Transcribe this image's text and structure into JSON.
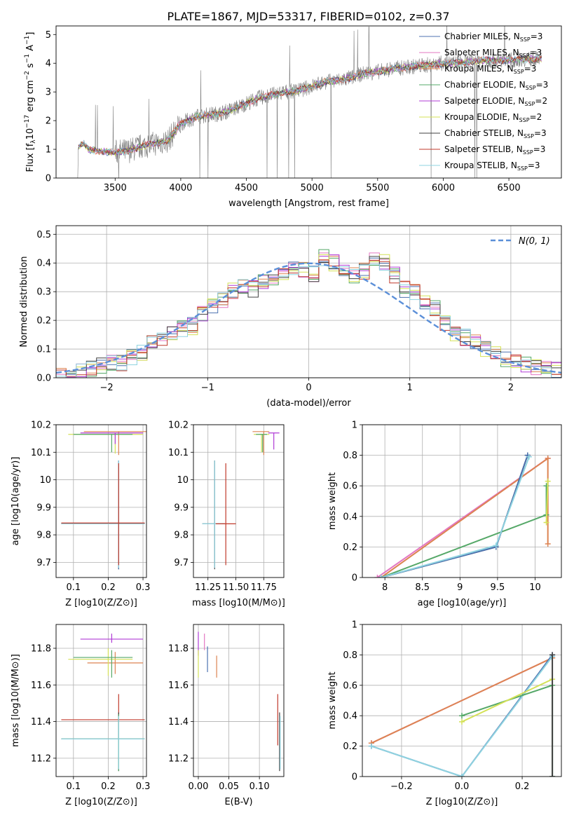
{
  "figure": {
    "title": "PLATE=1867, MJD=53317, FIBERID=0102, z=0.37",
    "colors": {
      "chabrier_miles": "#4c72b0",
      "salpeter_miles": "#e377c2",
      "kroupa_miles": "#dd8452",
      "chabrier_elodie": "#55a868",
      "salpeter_elodie": "#b03bd6",
      "kroupa_elodie": "#d4e157",
      "chabrier_stelib": "#404040",
      "salpeter_stelib": "#c0392b",
      "kroupa_stelib": "#8fd3e0",
      "data": "#808080",
      "normal": "#5b8fd8"
    }
  },
  "chart_data": [
    {
      "id": "spectrum",
      "type": "line",
      "xlabel": "wavelength [Angstrom, rest frame]",
      "ylabel": "Flux [f",
      "ylabel_parts": [
        "Flux [f",
        "λ",
        "10",
        "−17",
        " erg cm",
        "−2",
        " s",
        "−1",
        " A",
        "−1",
        "]"
      ],
      "xlim": [
        3050,
        6900
      ],
      "ylim": [
        0,
        5.3
      ],
      "xticks": [
        3500,
        4000,
        4500,
        5000,
        5500,
        6000,
        6500
      ],
      "yticks": [
        0,
        1,
        2,
        3,
        4,
        5
      ],
      "grid": false,
      "legend_position": "top-right",
      "series": [
        {
          "name": "Chabrier MILES, N",
          "sub": "SSP",
          "suffix": "=3",
          "color": "#4c72b0"
        },
        {
          "name": "Salpeter MILES, N",
          "sub": "SSP",
          "suffix": "=3",
          "color": "#e377c2"
        },
        {
          "name": "Kroupa MILES, N",
          "sub": "SSP",
          "suffix": "=3",
          "color": "#dd8452"
        },
        {
          "name": "Chabrier ELODIE, N",
          "sub": "SSP",
          "suffix": "=3",
          "color": "#55a868"
        },
        {
          "name": "Salpeter ELODIE, N",
          "sub": "SSP",
          "suffix": "=2",
          "color": "#b03bd6"
        },
        {
          "name": "Kroupa ELODIE, N",
          "sub": "SSP",
          "suffix": "=2",
          "color": "#d4e157"
        },
        {
          "name": "Chabrier STELIB, N",
          "sub": "SSP",
          "suffix": "=3",
          "color": "#404040"
        },
        {
          "name": "Salpeter STELIB, N",
          "sub": "SSP",
          "suffix": "=3",
          "color": "#c0392b"
        },
        {
          "name": "Kroupa STELIB, N",
          "sub": "SSP",
          "suffix": "=3",
          "color": "#8fd3e0"
        }
      ],
      "continuum": {
        "x": [
          3220,
          3260,
          3300,
          3400,
          3500,
          3600,
          3700,
          3800,
          3900,
          4000,
          4100,
          4200,
          4300,
          4400,
          4500,
          4600,
          4700,
          4800,
          4900,
          5000,
          5100,
          5200,
          5300,
          5400,
          5500,
          5600,
          5700,
          5800,
          5900,
          6000,
          6100,
          6200,
          6300,
          6400,
          6500,
          6600,
          6750
        ],
        "y": [
          1.1,
          1.2,
          0.98,
          0.92,
          0.9,
          0.95,
          1.1,
          1.2,
          1.3,
          1.9,
          2.1,
          2.2,
          2.25,
          2.4,
          2.6,
          2.8,
          2.9,
          3.0,
          3.05,
          3.2,
          3.35,
          3.4,
          3.5,
          3.65,
          3.7,
          3.8,
          3.85,
          3.9,
          3.95,
          4.0,
          4.0,
          4.05,
          4.1,
          4.1,
          4.1,
          4.15,
          4.15
        ]
      }
    },
    {
      "id": "residuals",
      "type": "line",
      "xlabel": "(data-model)/error",
      "ylabel": "Normed distribution",
      "xlim": [
        -2.5,
        2.5
      ],
      "ylim": [
        0,
        0.53
      ],
      "xticks": [
        -2,
        -1,
        0,
        1,
        2
      ],
      "xticklabels": [
        "−2",
        "−1",
        "0",
        "1",
        "2"
      ],
      "yticks": [
        0.0,
        0.1,
        0.2,
        0.3,
        0.4,
        0.5
      ],
      "yticklabels": [
        "0.0",
        "0.1",
        "0.2",
        "0.3",
        "0.4",
        "0.5"
      ],
      "grid": true,
      "legend_position": "top-right",
      "legend": "N(0, 1)",
      "bins": [
        -2.5,
        -2.4,
        -2.3,
        -2.2,
        -2.1,
        -2.0,
        -1.9,
        -1.8,
        -1.7,
        -1.6,
        -1.5,
        -1.4,
        -1.3,
        -1.2,
        -1.1,
        -1.0,
        -0.9,
        -0.8,
        -0.7,
        -0.6,
        -0.5,
        -0.4,
        -0.3,
        -0.2,
        -0.1,
        0.0,
        0.1,
        0.2,
        0.3,
        0.4,
        0.5,
        0.6,
        0.7,
        0.8,
        0.9,
        1.0,
        1.1,
        1.2,
        1.3,
        1.4,
        1.5,
        1.6,
        1.7,
        1.8,
        1.9,
        2.0,
        2.1,
        2.2,
        2.3,
        2.4,
        2.5
      ],
      "hist_mean": [
        0.005,
        0.01,
        0.02,
        0.03,
        0.04,
        0.05,
        0.05,
        0.07,
        0.09,
        0.12,
        0.13,
        0.16,
        0.17,
        0.18,
        0.22,
        0.25,
        0.27,
        0.3,
        0.32,
        0.31,
        0.33,
        0.35,
        0.36,
        0.38,
        0.38,
        0.36,
        0.42,
        0.4,
        0.38,
        0.36,
        0.37,
        0.42,
        0.4,
        0.36,
        0.31,
        0.3,
        0.27,
        0.24,
        0.19,
        0.15,
        0.14,
        0.12,
        0.1,
        0.08,
        0.06,
        0.05,
        0.05,
        0.04,
        0.03,
        0.025
      ]
    },
    {
      "id": "age-vs-Z",
      "type": "scatter",
      "xlabel": "Z [log10(Z/Z⊙)]",
      "ylabel": "age [log10(age/yr)]",
      "xlim": [
        0.05,
        0.31
      ],
      "ylim": [
        9.645,
        10.2
      ],
      "xticks": [
        0.1,
        0.2,
        0.3
      ],
      "yticks": [
        9.7,
        9.8,
        9.9,
        10.0,
        10.1,
        10.2
      ],
      "grid": true
    },
    {
      "id": "age-vs-mass",
      "type": "scatter",
      "xlabel": "mass [log10(M/M⊙)]",
      "xlim": [
        11.12,
        11.93
      ],
      "ylim": [
        9.645,
        10.2
      ],
      "xticks": [
        11.25,
        11.5,
        11.75
      ],
      "xticklabels": [
        "11.25",
        "11.50",
        "11.75"
      ],
      "yticks": [
        9.7,
        9.8,
        9.9,
        10.0,
        10.1,
        10.2
      ],
      "grid": true
    },
    {
      "id": "weight-vs-age",
      "type": "line",
      "xlabel": "age [log10(age/yr)]",
      "ylabel": "mass weight",
      "xlim": [
        7.7,
        10.35
      ],
      "ylim": [
        0,
        1
      ],
      "xticks": [
        8.0,
        8.5,
        9.0,
        9.5,
        10.0
      ],
      "yticks": [
        0.0,
        0.2,
        0.4,
        0.6,
        0.8,
        1.0
      ],
      "grid": true
    },
    {
      "id": "mass-vs-Z",
      "type": "scatter",
      "xlabel": "Z [log10(Z/Z⊙)]",
      "ylabel": "mass [log10(M/M⊙)]",
      "xlim": [
        0.05,
        0.31
      ],
      "ylim": [
        11.1,
        11.93
      ],
      "xticks": [
        0.1,
        0.2,
        0.3
      ],
      "yticks": [
        11.2,
        11.4,
        11.6,
        11.8
      ],
      "grid": true
    },
    {
      "id": "mass-vs-ebv",
      "type": "scatter",
      "xlabel": "E(B-V)",
      "xlim": [
        -0.008,
        0.14
      ],
      "ylim": [
        11.1,
        11.93
      ],
      "xticks": [
        0.0,
        0.05,
        0.1
      ],
      "xticklabels": [
        "0.00",
        "0.05",
        "0.10"
      ],
      "yticks": [
        11.2,
        11.4,
        11.6,
        11.8
      ],
      "grid": true
    },
    {
      "id": "weight-vs-Z",
      "type": "line",
      "xlabel": "Z [log10(Z/Z⊙)]",
      "ylabel": "mass weight",
      "xlim": [
        -0.33,
        0.33
      ],
      "ylim": [
        0,
        1
      ],
      "xticks": [
        -0.2,
        0.0,
        0.2
      ],
      "xticklabels": [
        "−0.2",
        "0.0",
        "0.2"
      ],
      "yticks": [
        0.0,
        0.2,
        0.4,
        0.6,
        0.8,
        1.0
      ],
      "grid": true
    }
  ],
  "points": {
    "age_Z": [
      {
        "c": "#dd8452",
        "x": 0.23,
        "y": 10.175,
        "xe": [
          0.13,
          0.31
        ],
        "ye": [
          10.09,
          10.175
        ]
      },
      {
        "c": "#d4e157",
        "x": 0.22,
        "y": 10.165,
        "xe": [
          0.085,
          0.3
        ],
        "ye": [
          10.095,
          10.165
        ]
      },
      {
        "c": "#55a868",
        "x": 0.21,
        "y": 10.165,
        "xe": [
          0.1,
          0.27
        ],
        "ye": [
          10.1,
          10.165
        ]
      },
      {
        "c": "#b03bd6",
        "x": 0.22,
        "y": 10.17,
        "xe": [
          0.12,
          0.3
        ],
        "ye": [
          10.13,
          10.17
        ]
      },
      {
        "c": "#404040",
        "x": 0.23,
        "y": 9.84,
        "xe": [
          0.065,
          0.305
        ],
        "ye": [
          9.675,
          10.07
        ]
      },
      {
        "c": "#4c72b0",
        "x": 0.23,
        "y": 9.84,
        "xe": [
          0.065,
          0.305
        ],
        "ye": [
          9.675,
          10.07
        ]
      },
      {
        "c": "#8fd3e0",
        "x": 0.23,
        "y": 9.84,
        "xe": [
          0.065,
          0.305
        ],
        "ye": [
          9.68,
          10.07
        ]
      },
      {
        "c": "#c0392b",
        "x": 0.23,
        "y": 9.843,
        "xe": [
          0.065,
          0.305
        ],
        "ye": [
          9.69,
          10.06
        ]
      }
    ],
    "age_mass": [
      {
        "c": "#dd8452",
        "x": 11.75,
        "y": 10.175,
        "xe": [
          11.65,
          11.8
        ],
        "ye": [
          10.09,
          10.175
        ]
      },
      {
        "c": "#d4e157",
        "x": 11.73,
        "y": 10.165,
        "xe": [
          11.66,
          11.8
        ],
        "ye": [
          10.1,
          10.165
        ]
      },
      {
        "c": "#55a868",
        "x": 11.74,
        "y": 10.165,
        "xe": [
          11.68,
          11.78
        ],
        "ye": [
          10.1,
          10.165
        ]
      },
      {
        "c": "#b03bd6",
        "x": 11.84,
        "y": 10.17,
        "xe": [
          11.79,
          11.89
        ],
        "ye": [
          10.11,
          10.17
        ]
      },
      {
        "c": "#404040",
        "x": 11.31,
        "y": 9.84,
        "xe": [
          11.2,
          11.4
        ],
        "ye": [
          9.675,
          10.07
        ]
      },
      {
        "c": "#8fd3e0",
        "x": 11.31,
        "y": 9.84,
        "xe": [
          11.2,
          11.38
        ],
        "ye": [
          9.68,
          10.07
        ]
      },
      {
        "c": "#c0392b",
        "x": 11.41,
        "y": 9.84,
        "xe": [
          11.32,
          11.5
        ],
        "ye": [
          9.69,
          10.06
        ]
      }
    ],
    "weight_age": [
      {
        "c": "#e377c2",
        "pts": [
          [
            7.9,
            0.0
          ],
          [
            10.17,
            0.78
          ]
        ]
      },
      {
        "c": "#dd8452",
        "pts": [
          [
            7.95,
            0.0
          ],
          [
            10.17,
            0.78
          ],
          [
            10.17,
            0.22
          ]
        ]
      },
      {
        "c": "#55a868",
        "pts": [
          [
            7.95,
            0.0
          ],
          [
            10.15,
            0.41
          ],
          [
            10.15,
            0.6
          ]
        ]
      },
      {
        "c": "#d4e157",
        "pts": [
          [
            10.15,
            0.36
          ],
          [
            10.17,
            0.63
          ]
        ]
      },
      {
        "c": "#404040",
        "pts": [
          [
            7.95,
            0.0
          ],
          [
            9.48,
            0.2
          ],
          [
            9.9,
            0.8
          ]
        ]
      },
      {
        "c": "#4c72b0",
        "pts": [
          [
            7.95,
            0.0
          ],
          [
            9.48,
            0.2
          ],
          [
            9.9,
            0.8
          ]
        ]
      },
      {
        "c": "#8fd3e0",
        "pts": [
          [
            7.95,
            0.0
          ],
          [
            9.48,
            0.21
          ],
          [
            9.92,
            0.79
          ]
        ]
      }
    ],
    "mass_Z": [
      {
        "c": "#b03bd6",
        "x": 0.21,
        "y": 11.85,
        "xe": [
          0.12,
          0.3
        ],
        "ye": [
          11.83,
          11.88
        ]
      },
      {
        "c": "#dd8452",
        "x": 0.22,
        "y": 11.72,
        "xe": [
          0.14,
          0.3
        ],
        "ye": [
          11.66,
          11.78
        ]
      },
      {
        "c": "#d4e157",
        "x": 0.2,
        "y": 11.74,
        "xe": [
          0.085,
          0.27
        ],
        "ye": [
          11.65,
          11.8
        ]
      },
      {
        "c": "#55a868",
        "x": 0.21,
        "y": 11.75,
        "xe": [
          0.1,
          0.27
        ],
        "ye": [
          11.64,
          11.79
        ]
      },
      {
        "c": "#c0392b",
        "x": 0.23,
        "y": 11.41,
        "xe": [
          0.065,
          0.305
        ],
        "ye": [
          11.3,
          11.55
        ]
      },
      {
        "c": "#404040",
        "x": 0.23,
        "y": 11.305,
        "xe": [
          0.065,
          0.305
        ],
        "ye": [
          11.13,
          11.45
        ]
      },
      {
        "c": "#55a868",
        "x": 0.23,
        "y": 11.305,
        "xe": [
          0.065,
          0.305
        ],
        "ye": [
          11.13,
          11.44
        ]
      },
      {
        "c": "#8fd3e0",
        "x": 0.23,
        "y": 11.305,
        "xe": [
          0.065,
          0.305
        ],
        "ye": [
          11.14,
          11.43
        ]
      }
    ],
    "mass_ebv": [
      {
        "c": "#b03bd6",
        "x": 0.0,
        "ye": [
          11.76,
          11.89
        ]
      },
      {
        "c": "#d4e157",
        "x": 0.0,
        "ye": [
          11.64,
          11.79
        ]
      },
      {
        "c": "#e377c2",
        "x": 0.01,
        "ye": [
          11.79,
          11.88
        ]
      },
      {
        "c": "#4c72b0",
        "x": 0.015,
        "ye": [
          11.67,
          11.81
        ]
      },
      {
        "c": "#dd8452",
        "x": 0.03,
        "ye": [
          11.64,
          11.76
        ]
      },
      {
        "c": "#c0392b",
        "x": 0.13,
        "ye": [
          11.27,
          11.55
        ]
      },
      {
        "c": "#404040",
        "x": 0.133,
        "ye": [
          11.13,
          11.45
        ]
      },
      {
        "c": "#8fd3e0",
        "x": 0.134,
        "ye": [
          11.14,
          11.43
        ]
      }
    ],
    "weight_Z": [
      {
        "c": "#e377c2",
        "pts": [
          [
            -0.3,
            0.22
          ],
          [
            0.3,
            0.78
          ]
        ]
      },
      {
        "c": "#dd8452",
        "pts": [
          [
            -0.3,
            0.22
          ],
          [
            0.3,
            0.78
          ],
          [
            0.3,
            0.78
          ]
        ]
      },
      {
        "c": "#4c72b0",
        "pts": [
          [
            -0.3,
            0.2
          ],
          [
            0.0,
            0.0
          ],
          [
            0.3,
            0.8
          ]
        ]
      },
      {
        "c": "#8fd3e0",
        "pts": [
          [
            -0.3,
            0.2
          ],
          [
            0.0,
            0.0
          ],
          [
            0.3,
            0.79
          ]
        ]
      },
      {
        "c": "#55a868",
        "pts": [
          [
            0.0,
            0.4
          ],
          [
            0.3,
            0.6
          ],
          [
            0.3,
            0.0
          ]
        ]
      },
      {
        "c": "#d4e157",
        "pts": [
          [
            0.0,
            0.36
          ],
          [
            0.3,
            0.64
          ]
        ]
      },
      {
        "c": "#404040",
        "pts": [
          [
            0.3,
            0.8
          ],
          [
            0.3,
            0.0
          ]
        ]
      }
    ]
  }
}
